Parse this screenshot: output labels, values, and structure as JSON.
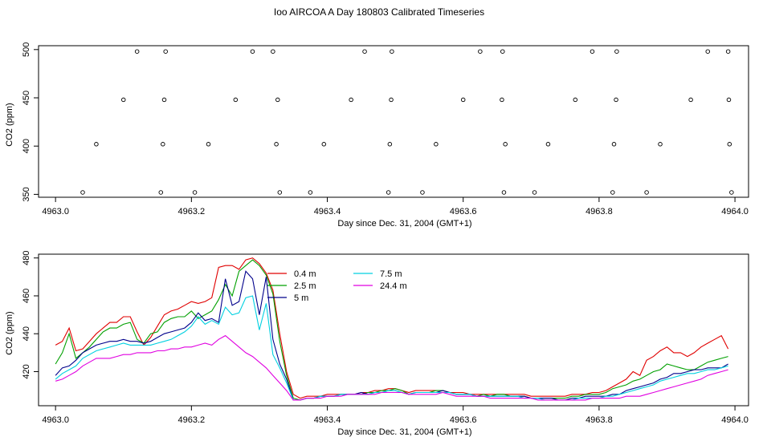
{
  "title": "Ioo AIRCOA A  Day 180803  Calibrated Timeseries",
  "chart_data": [
    {
      "type": "scatter",
      "xlabel": "Day since Dec. 31, 2004 (GMT+1)",
      "ylabel": "CO2 (ppm)",
      "xlim": [
        4962.975,
        4964.02
      ],
      "ylim": [
        347,
        504
      ],
      "xticks": [
        "4963.0",
        "4963.2",
        "4963.4",
        "4963.6",
        "4963.8",
        "4964.0"
      ],
      "yticks": [
        "350",
        "400",
        "450",
        "500"
      ],
      "grid": false,
      "points": [
        [
          4963.04,
          352
        ],
        [
          4963.06,
          402
        ],
        [
          4963.1,
          448
        ],
        [
          4963.12,
          498
        ],
        [
          4963.155,
          352
        ],
        [
          4963.158,
          402
        ],
        [
          4963.16,
          448
        ],
        [
          4963.162,
          498
        ],
        [
          4963.205,
          352
        ],
        [
          4963.225,
          402
        ],
        [
          4963.265,
          448
        ],
        [
          4963.29,
          498
        ],
        [
          4963.32,
          498
        ],
        [
          4963.325,
          402
        ],
        [
          4963.327,
          448
        ],
        [
          4963.33,
          352
        ],
        [
          4963.375,
          352
        ],
        [
          4963.395,
          402
        ],
        [
          4963.435,
          448
        ],
        [
          4963.455,
          498
        ],
        [
          4963.49,
          352
        ],
        [
          4963.492,
          402
        ],
        [
          4963.494,
          448
        ],
        [
          4963.495,
          498
        ],
        [
          4963.54,
          352
        ],
        [
          4963.56,
          402
        ],
        [
          4963.6,
          448
        ],
        [
          4963.625,
          498
        ],
        [
          4963.657,
          448
        ],
        [
          4963.658,
          498
        ],
        [
          4963.66,
          352
        ],
        [
          4963.662,
          402
        ],
        [
          4963.705,
          352
        ],
        [
          4963.725,
          402
        ],
        [
          4963.765,
          448
        ],
        [
          4963.79,
          498
        ],
        [
          4963.82,
          352
        ],
        [
          4963.822,
          402
        ],
        [
          4963.825,
          448
        ],
        [
          4963.826,
          498
        ],
        [
          4963.87,
          352
        ],
        [
          4963.89,
          402
        ],
        [
          4963.935,
          448
        ],
        [
          4963.96,
          498
        ],
        [
          4963.99,
          498
        ],
        [
          4963.991,
          448
        ],
        [
          4963.992,
          402
        ],
        [
          4963.995,
          352
        ]
      ]
    },
    {
      "type": "line",
      "xlabel": "Day since Dec. 31, 2004 (GMT+1)",
      "ylabel": "CO2 (ppm)",
      "xlim": [
        4962.975,
        4964.02
      ],
      "ylim": [
        402,
        482
      ],
      "xticks": [
        "4963.0",
        "4963.2",
        "4963.4",
        "4963.6",
        "4963.8",
        "4964.0"
      ],
      "yticks": [
        "420",
        "440",
        "460",
        "480"
      ],
      "grid": false,
      "legend": "top-left",
      "x": [
        4963.0,
        4963.01,
        4963.02,
        4963.03,
        4963.04,
        4963.05,
        4963.06,
        4963.07,
        4963.08,
        4963.09,
        4963.1,
        4963.11,
        4963.12,
        4963.13,
        4963.14,
        4963.15,
        4963.16,
        4963.17,
        4963.18,
        4963.19,
        4963.2,
        4963.21,
        4963.22,
        4963.23,
        4963.24,
        4963.25,
        4963.26,
        4963.27,
        4963.28,
        4963.29,
        4963.3,
        4963.31,
        4963.32,
        4963.33,
        4963.34,
        4963.35,
        4963.36,
        4963.37,
        4963.38,
        4963.39,
        4963.4,
        4963.41,
        4963.42,
        4963.43,
        4963.44,
        4963.45,
        4963.46,
        4963.47,
        4963.48,
        4963.49,
        4963.5,
        4963.51,
        4963.52,
        4963.53,
        4963.54,
        4963.55,
        4963.56,
        4963.57,
        4963.58,
        4963.59,
        4963.6,
        4963.61,
        4963.62,
        4963.63,
        4963.64,
        4963.65,
        4963.66,
        4963.67,
        4963.68,
        4963.69,
        4963.7,
        4963.71,
        4963.72,
        4963.73,
        4963.74,
        4963.75,
        4963.76,
        4963.77,
        4963.78,
        4963.79,
        4963.8,
        4963.81,
        4963.82,
        4963.83,
        4963.84,
        4963.85,
        4963.86,
        4963.87,
        4963.88,
        4963.89,
        4963.9,
        4963.91,
        4963.92,
        4963.93,
        4963.94,
        4963.95,
        4963.96,
        4963.97,
        4963.98,
        4963.99
      ],
      "series": [
        {
          "name": "0.4 m",
          "color": "#e00000",
          "values": [
            434,
            436,
            443,
            431,
            432,
            436,
            440,
            443,
            446,
            446,
            449,
            449,
            441,
            434,
            438,
            444,
            450,
            452,
            453,
            455,
            457,
            456,
            457,
            459,
            475,
            476,
            476,
            474,
            479,
            480,
            477,
            472,
            463,
            440,
            420,
            408,
            406,
            407,
            407,
            407,
            408,
            408,
            408,
            408,
            408,
            409,
            409,
            410,
            410,
            411,
            411,
            410,
            409,
            410,
            410,
            410,
            410,
            410,
            409,
            409,
            409,
            408,
            408,
            408,
            408,
            408,
            408,
            408,
            408,
            408,
            407,
            407,
            407,
            407,
            407,
            407,
            408,
            408,
            408,
            409,
            409,
            410,
            412,
            414,
            416,
            420,
            418,
            426,
            428,
            431,
            433,
            430,
            430,
            428,
            430,
            433,
            435,
            437,
            439,
            432
          ]
        },
        {
          "name": "2.5 m",
          "color": "#00a000",
          "values": [
            424,
            430,
            440,
            427,
            430,
            433,
            437,
            441,
            443,
            443,
            445,
            446,
            437,
            435,
            440,
            441,
            446,
            448,
            449,
            449,
            452,
            448,
            450,
            452,
            458,
            466,
            460,
            473,
            476,
            479,
            476,
            471,
            461,
            436,
            418,
            406,
            405,
            406,
            406,
            407,
            407,
            407,
            408,
            408,
            408,
            408,
            409,
            409,
            410,
            410,
            411,
            410,
            408,
            409,
            409,
            409,
            410,
            410,
            409,
            408,
            408,
            408,
            407,
            408,
            407,
            408,
            408,
            407,
            407,
            407,
            406,
            406,
            406,
            406,
            406,
            406,
            407,
            407,
            408,
            408,
            408,
            409,
            411,
            412,
            413,
            415,
            416,
            418,
            420,
            421,
            424,
            423,
            422,
            421,
            421,
            423,
            425,
            426,
            427,
            428
          ]
        },
        {
          "name": "5 m",
          "color": "#00008b",
          "values": [
            418,
            422,
            423,
            426,
            430,
            432,
            434,
            435,
            436,
            436,
            437,
            436,
            436,
            435,
            436,
            438,
            440,
            441,
            442,
            443,
            446,
            451,
            447,
            448,
            446,
            469,
            455,
            457,
            473,
            469,
            450,
            470,
            437,
            424,
            416,
            405,
            405,
            406,
            406,
            407,
            407,
            407,
            408,
            408,
            408,
            409,
            408,
            409,
            409,
            410,
            410,
            409,
            408,
            409,
            409,
            409,
            409,
            410,
            409,
            408,
            408,
            408,
            407,
            407,
            407,
            407,
            407,
            407,
            407,
            407,
            406,
            406,
            406,
            406,
            405,
            405,
            406,
            406,
            407,
            407,
            407,
            407,
            408,
            408,
            410,
            411,
            412,
            413,
            414,
            416,
            417,
            419,
            419,
            420,
            421,
            421,
            422,
            422,
            422,
            424
          ]
        },
        {
          "name": "7.5 m",
          "color": "#00d0e0",
          "values": [
            416,
            419,
            421,
            423,
            427,
            429,
            431,
            432,
            433,
            434,
            435,
            434,
            434,
            434,
            434,
            435,
            436,
            437,
            439,
            441,
            444,
            449,
            445,
            447,
            445,
            454,
            450,
            451,
            459,
            460,
            442,
            456,
            429,
            422,
            414,
            405,
            405,
            406,
            406,
            407,
            407,
            407,
            408,
            408,
            408,
            408,
            408,
            409,
            409,
            410,
            410,
            409,
            408,
            409,
            409,
            409,
            409,
            409,
            409,
            408,
            408,
            408,
            407,
            407,
            407,
            407,
            407,
            407,
            407,
            406,
            406,
            406,
            405,
            405,
            405,
            405,
            405,
            406,
            406,
            406,
            406,
            407,
            407,
            408,
            409,
            410,
            411,
            412,
            413,
            415,
            416,
            417,
            418,
            419,
            419,
            420,
            421,
            421,
            422,
            423
          ]
        },
        {
          "name": "24.4 m",
          "color": "#e000e0",
          "values": [
            415,
            416,
            418,
            420,
            423,
            425,
            427,
            427,
            427,
            428,
            429,
            429,
            430,
            430,
            430,
            431,
            431,
            432,
            432,
            433,
            433,
            434,
            435,
            434,
            437,
            439,
            436,
            433,
            430,
            428,
            425,
            422,
            418,
            414,
            410,
            405,
            405,
            406,
            406,
            406,
            407,
            407,
            407,
            408,
            408,
            408,
            408,
            408,
            409,
            409,
            409,
            409,
            408,
            408,
            408,
            408,
            408,
            409,
            408,
            407,
            407,
            407,
            407,
            407,
            406,
            406,
            406,
            406,
            406,
            406,
            406,
            405,
            405,
            405,
            405,
            405,
            405,
            405,
            405,
            406,
            406,
            406,
            406,
            406,
            407,
            407,
            407,
            408,
            409,
            410,
            411,
            412,
            413,
            414,
            415,
            416,
            418,
            419,
            420,
            421
          ]
        }
      ]
    }
  ]
}
